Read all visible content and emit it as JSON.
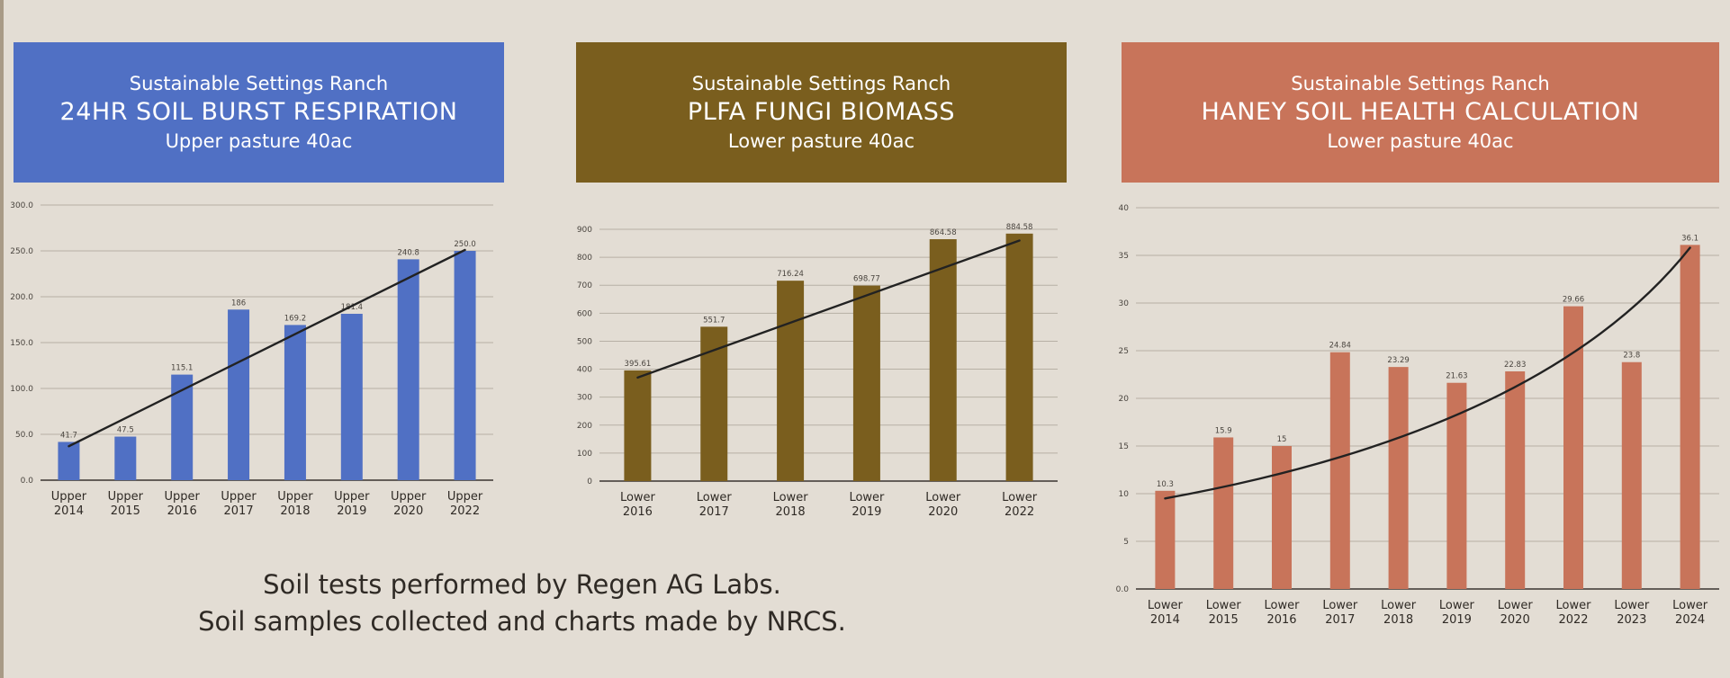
{
  "footer": {
    "line1": "Soil tests performed by Regen AG Labs.",
    "line2": "Soil samples collected and charts made by NRCS."
  },
  "chart_data": [
    {
      "type": "bar",
      "ranch": "Sustainable Settings Ranch",
      "title": "24HR SOIL BURST RESPIRATION",
      "subtitle": "Upper pasture 40ac",
      "color": "#5070c4",
      "categories": [
        [
          "Upper",
          "2014"
        ],
        [
          "Upper",
          "2015"
        ],
        [
          "Upper",
          "2016"
        ],
        [
          "Upper",
          "2017"
        ],
        [
          "Upper",
          "2018"
        ],
        [
          "Upper",
          "2019"
        ],
        [
          "Upper",
          "2020"
        ],
        [
          "Upper",
          "2022"
        ]
      ],
      "values": [
        41.7,
        47.5,
        115.1,
        186,
        169.2,
        181.4,
        240.8,
        250.0
      ],
      "value_labels": [
        "41.7",
        "47.5",
        "115.1",
        "186",
        "169.2",
        "181.4",
        "240.8",
        "250.0"
      ],
      "yticks": [
        "0.0",
        "50.0",
        "100.0",
        "150.0",
        "200.0",
        "250.0",
        "300.0"
      ],
      "ylim": [
        0,
        300
      ],
      "trend": [
        37,
        251
      ],
      "trend_curve": 0.0
    },
    {
      "type": "bar",
      "ranch": "Sustainable Settings Ranch",
      "title": "PLFA FUNGI BIOMASS",
      "subtitle": "Lower pasture 40ac",
      "color": "#7a5e1e",
      "categories": [
        [
          "Lower",
          "2016"
        ],
        [
          "Lower",
          "2017"
        ],
        [
          "Lower",
          "2018"
        ],
        [
          "Lower",
          "2019"
        ],
        [
          "Lower",
          "2020"
        ],
        [
          "Lower",
          "2022"
        ]
      ],
      "values": [
        395.61,
        551.7,
        716.24,
        698.77,
        864.58,
        884.58
      ],
      "value_labels": [
        "395.61",
        "551.7",
        "716.24",
        "698.77",
        "864.58",
        "884.58"
      ],
      "yticks": [
        "0",
        "100",
        "200",
        "300",
        "400",
        "500",
        "600",
        "700",
        "800",
        "900"
      ],
      "ylim": [
        0,
        900
      ],
      "trend": [
        370,
        860
      ],
      "trend_curve": 0.0
    },
    {
      "type": "bar",
      "ranch": "Sustainable Settings Ranch",
      "title": "HANEY SOIL HEALTH CALCULATION",
      "subtitle": "Lower pasture 40ac",
      "color": "#c8745a",
      "categories": [
        [
          "Lower",
          "2014"
        ],
        [
          "Lower",
          "2015"
        ],
        [
          "Lower",
          "2016"
        ],
        [
          "Lower",
          "2017"
        ],
        [
          "Lower",
          "2018"
        ],
        [
          "Lower",
          "2019"
        ],
        [
          "Lower",
          "2020"
        ],
        [
          "Lower",
          "2022"
        ],
        [
          "Lower",
          "2023"
        ],
        [
          "Lower",
          "2024"
        ]
      ],
      "values": [
        10.3,
        15.9,
        15,
        24.84,
        23.29,
        21.63,
        22.83,
        29.66,
        23.8,
        36.1
      ],
      "value_labels": [
        "10.3",
        "15.9",
        "15",
        "24.84",
        "23.29",
        "21.63",
        "22.83",
        "29.66",
        "23.8",
        "36.1"
      ],
      "yticks": [
        "0.0",
        "5",
        "10",
        "15",
        "20",
        "25",
        "30",
        "35",
        "40"
      ],
      "ylim": [
        0,
        40
      ],
      "trend": [
        9.5,
        35.8
      ],
      "trend_curve": 0.45
    }
  ]
}
